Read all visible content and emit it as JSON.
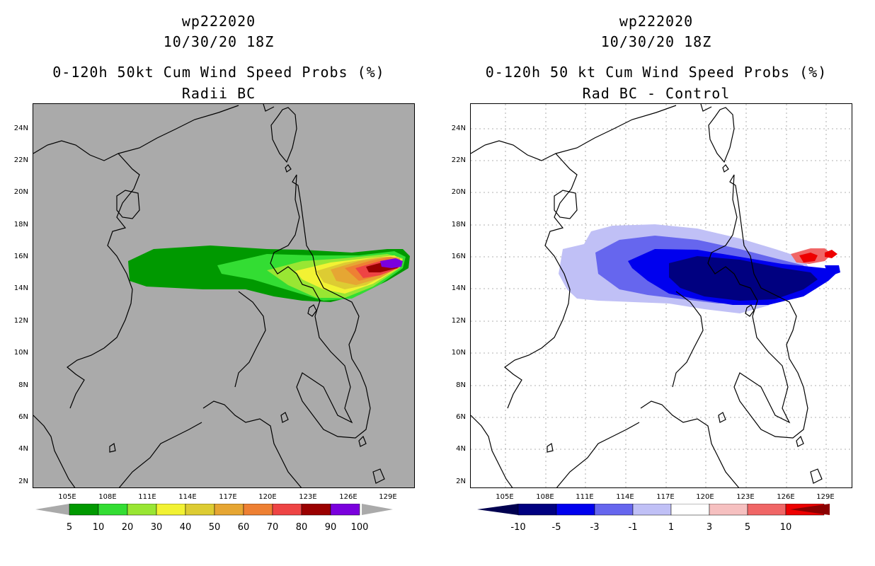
{
  "left": {
    "storm": "wp222020",
    "date": "10/30/20 18Z",
    "product": "0-120h 50kt Cum Wind Speed Probs (%)",
    "subtitle": "Radii BC",
    "colorbar": {
      "labels": [
        "5",
        "10",
        "20",
        "30",
        "40",
        "50",
        "60",
        "70",
        "80",
        "90",
        "100"
      ],
      "colors": [
        "#009900",
        "#33dd33",
        "#99e633",
        "#f2f233",
        "#ddcc33",
        "#e6a633",
        "#ee8033",
        "#ee4444",
        "#9a0000",
        "#7a00dd"
      ]
    }
  },
  "right": {
    "storm": "wp222020",
    "date": "10/30/20 18Z",
    "product": "0-120h 50 kt Cum Wind Speed Probs (%)",
    "subtitle": "Rad BC - Control",
    "colorbar": {
      "labels": [
        "-10",
        "-5",
        "-3",
        "-1",
        "1",
        "3",
        "5",
        "10"
      ],
      "colors": [
        "#000080",
        "#0000ee",
        "#6666ee",
        "#c0c0f6",
        "#ffffff",
        "#f6c0c0",
        "#f06666",
        "#ee0000"
      ],
      "end_colors": [
        "#000050",
        "#8b0000"
      ]
    }
  },
  "axes": {
    "y_ticks": [
      "24N",
      "22N",
      "20N",
      "18N",
      "16N",
      "14N",
      "12N",
      "10N",
      "8N",
      "6N",
      "4N",
      "2N"
    ],
    "x_ticks": [
      "105E",
      "108E",
      "111E",
      "114E",
      "117E",
      "120E",
      "123E",
      "126E",
      "129E"
    ]
  },
  "colors": {
    "left_background": "#aaaaaa",
    "right_background": "#ffffff",
    "coast": "#000000"
  }
}
